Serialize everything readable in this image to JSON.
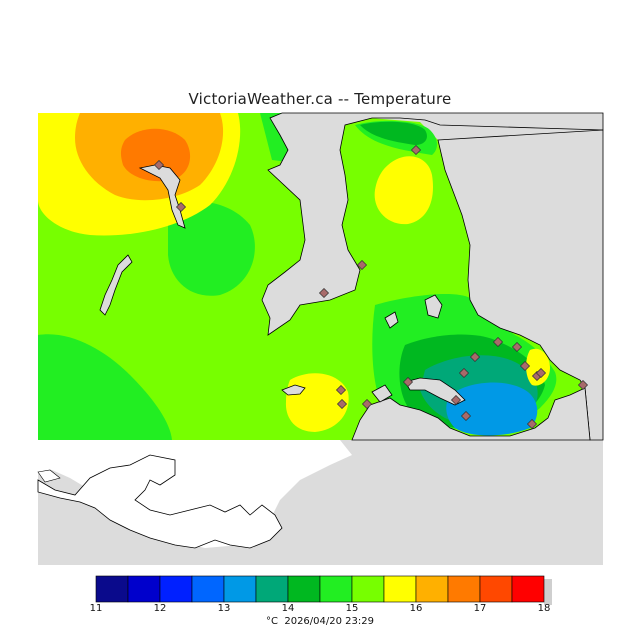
{
  "title": "VictoriaWeather.ca -- Temperature",
  "colors": {
    "background": "#ffffff",
    "outside_area": "#dcdcdc",
    "water_white": "#ffffff",
    "coast": "#000000",
    "station_marker": "#a86a6a"
  },
  "legend": {
    "unit": "°C",
    "ticks": [
      "11",
      "12",
      "13",
      "14",
      "15",
      "16",
      "17",
      "18"
    ],
    "bands": [
      {
        "from": 11.0,
        "to": 11.5,
        "color": "#0a0a8c"
      },
      {
        "from": 11.5,
        "to": 12.0,
        "color": "#0000cc"
      },
      {
        "from": 12.0,
        "to": 12.5,
        "color": "#0020ff"
      },
      {
        "from": 12.5,
        "to": 13.0,
        "color": "#0066ff"
      },
      {
        "from": 13.0,
        "to": 13.5,
        "color": "#0099e6"
      },
      {
        "from": 13.5,
        "to": 14.0,
        "color": "#00a878"
      },
      {
        "from": 14.0,
        "to": 14.5,
        "color": "#00b820"
      },
      {
        "from": 14.5,
        "to": 15.0,
        "color": "#22ee22"
      },
      {
        "from": 15.0,
        "to": 15.5,
        "color": "#77ff00"
      },
      {
        "from": 15.5,
        "to": 16.0,
        "color": "#ffff00"
      },
      {
        "from": 16.0,
        "to": 16.5,
        "color": "#ffb000"
      },
      {
        "from": 16.5,
        "to": 17.0,
        "color": "#ff7a00"
      },
      {
        "from": 17.0,
        "to": 17.5,
        "color": "#ff4800"
      },
      {
        "from": 17.5,
        "to": 18.0,
        "color": "#ff0000"
      }
    ]
  },
  "timestamp": "2026/04/20 23:29",
  "map_icons": [
    "station-marker-icon"
  ]
}
